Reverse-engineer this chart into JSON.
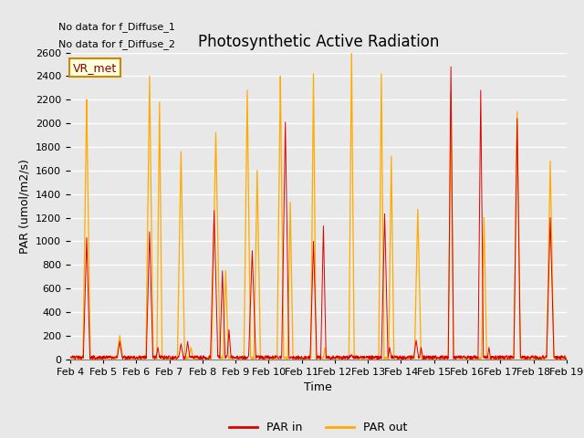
{
  "title": "Photosynthetic Active Radiation",
  "xlabel": "Time",
  "ylabel": "PAR (umol/m2/s)",
  "annotations": [
    "No data for f_Diffuse_1",
    "No data for f_Diffuse_2"
  ],
  "box_label": "VR_met",
  "legend_entries": [
    "PAR in",
    "PAR out"
  ],
  "line_colors": [
    "#dd0000",
    "#ffaa00"
  ],
  "background_color": "#e8e8e8",
  "axes_facecolor": "#e8e8e8",
  "ylim": [
    0,
    2600
  ],
  "yticks": [
    0,
    200,
    400,
    600,
    800,
    1000,
    1200,
    1400,
    1600,
    1800,
    2000,
    2200,
    2400,
    2600
  ],
  "days": [
    "Feb 4",
    "Feb 5",
    "Feb 6",
    "Feb 7",
    "Feb 8",
    "Feb 9",
    "Feb 10",
    "Feb 11",
    "Feb 12",
    "Feb 13",
    "Feb 14",
    "Feb 15",
    "Feb 16",
    "Feb 17",
    "Feb 18",
    "Feb 19"
  ],
  "title_fontsize": 12,
  "label_fontsize": 9,
  "tick_fontsize": 8,
  "note_fontsize": 8
}
